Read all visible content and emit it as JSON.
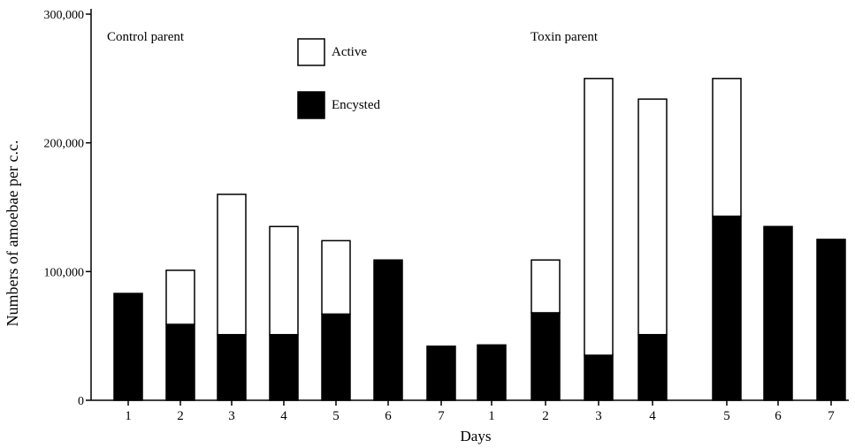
{
  "chart_data": {
    "type": "bar",
    "stacked": true,
    "ylabel": "Numbers of amoebae per c.c.",
    "xlabel": "Days",
    "ylim": [
      0,
      300000
    ],
    "yticks": [
      0,
      100000,
      200000,
      300000
    ],
    "ytick_labels": [
      "0",
      "100,000",
      "200,000",
      "300,000"
    ],
    "grid": false,
    "legend_position": "top-left",
    "series": [
      {
        "name": "Active",
        "color": "#ffffff"
      },
      {
        "name": "Encysted",
        "color": "#000000"
      }
    ],
    "groups": [
      {
        "label": "Control parent",
        "categories": [
          "1",
          "2",
          "3",
          "4",
          "5",
          "6",
          "7"
        ],
        "encysted": [
          83000,
          59000,
          51000,
          51000,
          67000,
          109000,
          42000
        ],
        "active": [
          0,
          42000,
          109000,
          84000,
          57000,
          0,
          0
        ]
      },
      {
        "label": "Toxin parent",
        "categories": [
          "1",
          "2",
          "3",
          "4",
          "5",
          "6",
          "7"
        ],
        "encysted": [
          43000,
          68000,
          35000,
          51000,
          143000,
          135000,
          125000
        ],
        "active": [
          0,
          41000,
          215000,
          183000,
          107000,
          0,
          0
        ]
      }
    ]
  }
}
